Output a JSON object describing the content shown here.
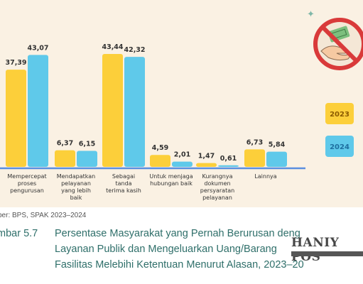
{
  "chart_data": {
    "type": "bar",
    "categories": [
      [
        "Mempercepat",
        "proses",
        "pengurusan"
      ],
      [
        "Mendapatkan",
        "pelayanan",
        "yang lebih",
        "baik"
      ],
      [
        "Sebagai",
        "tanda",
        "terima kasih"
      ],
      [
        "Untuk menjaga",
        "hubungan baik"
      ],
      [
        "Kurangnya",
        "dokumen",
        "persyaratan",
        "pelayanan"
      ],
      [
        "Lainnya"
      ]
    ],
    "series": [
      {
        "name": "2023",
        "color": "#fccf3a",
        "values": [
          37.39,
          6.37,
          43.44,
          4.59,
          1.47,
          6.73
        ],
        "labels": [
          "37,39",
          "6,37",
          "43,44",
          "4,59",
          "1,47",
          "6,73"
        ]
      },
      {
        "name": "2024",
        "color": "#5fc9ea",
        "values": [
          43.07,
          6.15,
          42.32,
          2.01,
          0.61,
          5.84
        ],
        "labels": [
          "43,07",
          "6,15",
          "42,32",
          "2,01",
          "0,61",
          "5,84"
        ]
      }
    ],
    "ylim": [
      0,
      50
    ],
    "legend": "right",
    "grid": false
  },
  "source": "ber: BPS, SPAK 2023–2024",
  "caption": {
    "number": "mbar 5.7",
    "lines": [
      "Persentase Masyarakat yang Pernah Berurusan deng",
      "Layanan  Publik  dan  Mengeluarkan  Uang/Barang",
      "Fasilitas Melebihi Ketentuan Menurut Alasan, 2023–20"
    ]
  },
  "watermark": "HANIY POS",
  "icon": "no-money-bribe-icon",
  "colors": {
    "panel": "#faf1e3",
    "axis": "#5b8fe0",
    "caption": "#2f6f6a"
  }
}
